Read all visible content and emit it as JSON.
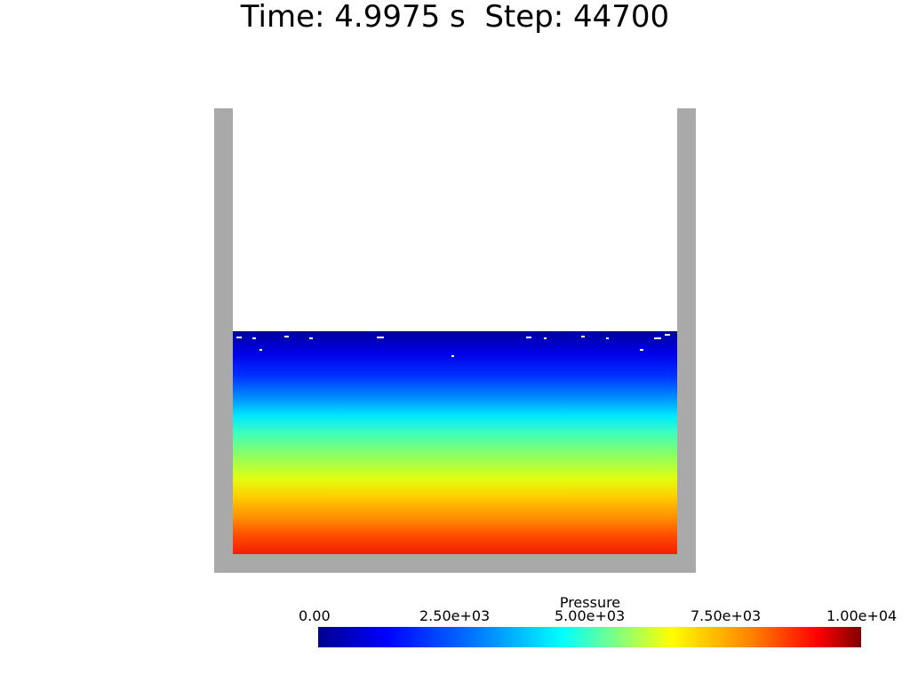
{
  "header": {
    "time_label": "Time: 4.9975 s  Step: 44700"
  },
  "colorbar": {
    "title": "Pressure",
    "ticks": [
      "0.00",
      "2.50e+03",
      "5.00e+03",
      "7.50e+03",
      "1.00e+04"
    ]
  },
  "colors": {
    "wall": "#a9a9a9",
    "background": "#ffffff"
  }
}
